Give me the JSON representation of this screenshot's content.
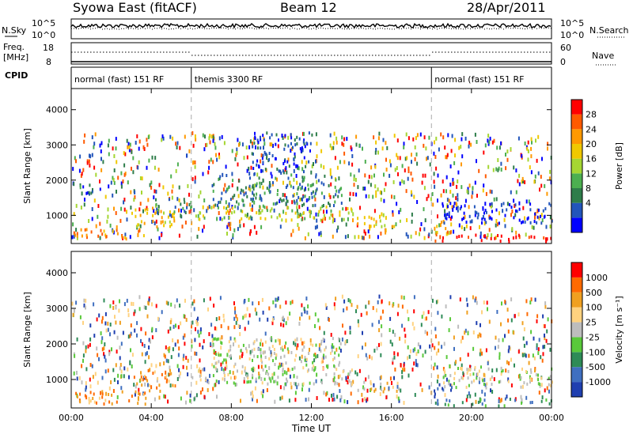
{
  "header": {
    "site": "Syowa East (fitACF)",
    "beam": "Beam 12",
    "date": "28/Apr/2011"
  },
  "top_strip": {
    "nsky_label": "N.Sky",
    "nsky_ticks": [
      "10^5",
      "10^0"
    ],
    "nsearch_label": "N.Search",
    "nsearch_ticks": [
      "10^5",
      "10^0"
    ],
    "freq_label": [
      "Freq.",
      "[MHz]"
    ],
    "freq_ticks": [
      "18",
      "8"
    ],
    "nave_label": "Nave",
    "nave_ticks": [
      "60",
      "0"
    ],
    "cpid_label": "CPID",
    "programs": [
      {
        "label": "normal (fast) 151 RF",
        "start_h": 0
      },
      {
        "label": "themis 3300 RF",
        "start_h": 6
      },
      {
        "label": "normal (fast) 151 RF",
        "start_h": 18
      }
    ]
  },
  "chart_data": [
    {
      "type": "heatmap",
      "panel": "power",
      "ylabel": "Slant Range [km]",
      "yticks": [
        1000,
        2000,
        3000,
        4000
      ],
      "ylim": [
        200,
        4600
      ],
      "xlim_hours": [
        0,
        24
      ],
      "xticks": [
        "00:00",
        "04:00",
        "08:00",
        "12:00",
        "16:00",
        "20:00",
        "00:00"
      ],
      "colorbar": {
        "label": "Power [dB]",
        "ticks": [
          "28",
          "24",
          "20",
          "16",
          "12",
          "8",
          "4"
        ],
        "colors": [
          "#0000ff",
          "#2255bb",
          "#2e7d4a",
          "#4caf50",
          "#a5d632",
          "#f0c800",
          "#ff9900",
          "#ff5a00",
          "#ff0000"
        ]
      },
      "regions": [
        {
          "t0": 0,
          "t1": 3.8,
          "r0": 350,
          "r1": 650,
          "level": 6
        },
        {
          "t0": 3.0,
          "t1": 5.2,
          "r0": 700,
          "r1": 1300,
          "level": 5
        },
        {
          "t0": 4.0,
          "t1": 6.0,
          "r0": 1000,
          "r1": 1500,
          "level": 2
        },
        {
          "t0": 0.2,
          "t1": 1.5,
          "r0": 1600,
          "r1": 1900,
          "level": 1
        },
        {
          "t0": 6.0,
          "t1": 14.0,
          "r0": 900,
          "r1": 1300,
          "level": 4
        },
        {
          "t0": 7.0,
          "t1": 13.5,
          "r0": 1300,
          "r1": 2200,
          "level": 2
        },
        {
          "t0": 9.0,
          "t1": 12.0,
          "r0": 2200,
          "r1": 3400,
          "level": 1
        },
        {
          "t0": 14.2,
          "t1": 16.5,
          "r0": 700,
          "r1": 1000,
          "level": 5
        },
        {
          "t0": 18.0,
          "t1": 24.0,
          "r0": 300,
          "r1": 500,
          "level": 8
        },
        {
          "t0": 18.0,
          "t1": 19.0,
          "r0": 500,
          "r1": 900,
          "level": 6
        },
        {
          "t0": 18.5,
          "t1": 24.0,
          "r0": 800,
          "r1": 1400,
          "level": 0
        }
      ]
    },
    {
      "type": "heatmap",
      "panel": "velocity",
      "ylabel": "Slant Range [km]",
      "yticks": [
        1000,
        2000,
        3000,
        4000
      ],
      "ylim": [
        200,
        4600
      ],
      "xlim_hours": [
        0,
        24
      ],
      "xticks": [
        "00:00",
        "04:00",
        "08:00",
        "12:00",
        "16:00",
        "20:00",
        "00:00"
      ],
      "xlabel": "Time UT",
      "colorbar": {
        "label": "Velocity [m s⁻¹]",
        "ticks": [
          "1000",
          "500",
          "100",
          "25",
          "-25",
          "-100",
          "-500",
          "-1000"
        ],
        "colors": [
          "#1f3fb0",
          "#3f6fc0",
          "#2e8b57",
          "#59c93a",
          "#bdbdbd",
          "#ffd27f",
          "#f0a020",
          "#ff6a00",
          "#ff0000"
        ]
      },
      "regions": [
        {
          "t0": 0,
          "t1": 3.8,
          "r0": 350,
          "r1": 700,
          "level": 6
        },
        {
          "t0": 3.0,
          "t1": 5.2,
          "r0": 700,
          "r1": 1300,
          "level": 6
        },
        {
          "t0": 6.0,
          "t1": 14.0,
          "r0": 900,
          "r1": 1400,
          "level": 4
        },
        {
          "t0": 7.0,
          "t1": 13.5,
          "r0": 1400,
          "r1": 2200,
          "level": 4
        },
        {
          "t0": 14.2,
          "t1": 16.5,
          "r0": 700,
          "r1": 1000,
          "level": 5
        },
        {
          "t0": 18.0,
          "t1": 24.0,
          "r0": 300,
          "r1": 500,
          "level": 2
        },
        {
          "t0": 18.0,
          "t1": 19.0,
          "r0": 500,
          "r1": 900,
          "level": 0
        },
        {
          "t0": 18.5,
          "t1": 24.0,
          "r0": 800,
          "r1": 1400,
          "level": 4
        }
      ]
    }
  ]
}
